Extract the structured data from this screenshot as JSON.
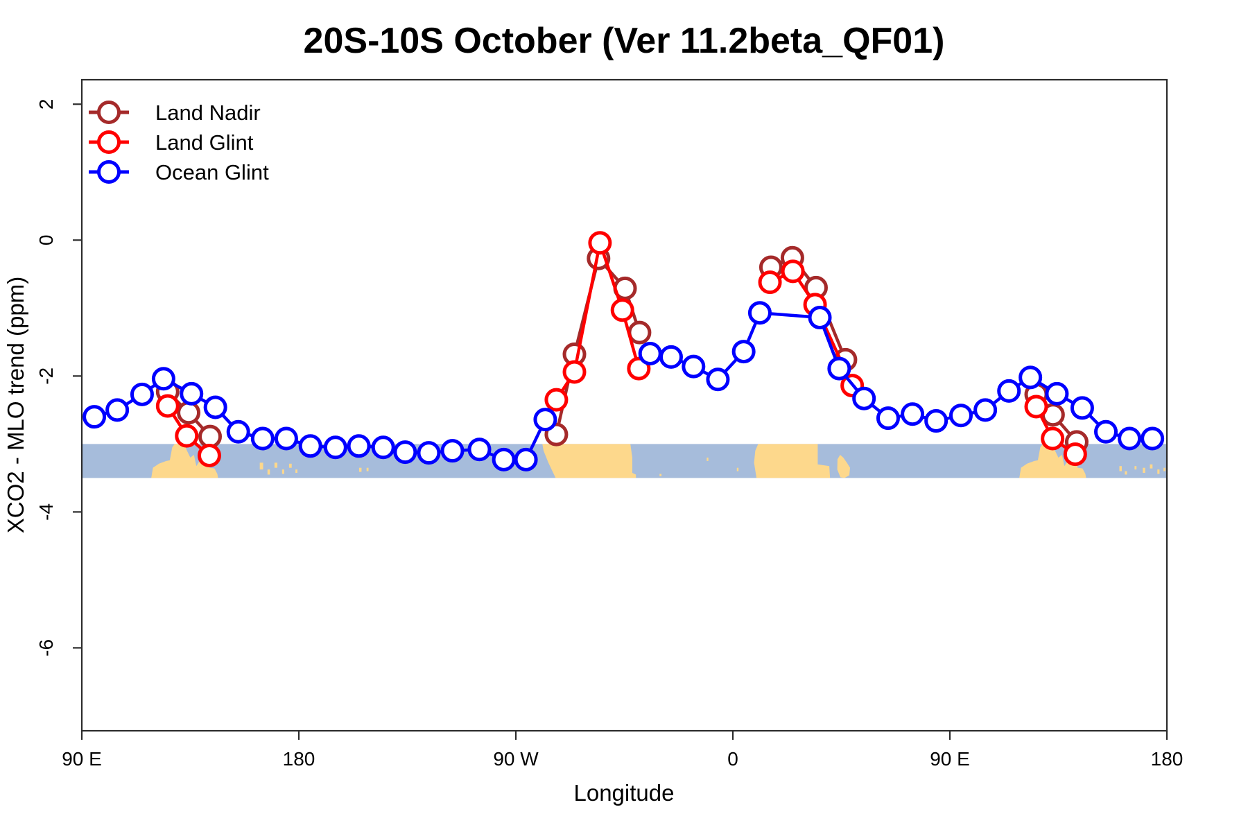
{
  "chart_data": {
    "type": "line",
    "title": "20S-10S October (Ver 11.2beta_QF01)",
    "xlabel": "Longitude",
    "ylabel": "XCO2 - MLO trend (ppm)",
    "xlim": [
      90,
      540
    ],
    "ylim": [
      -7.22,
      2.36
    ],
    "grid": false,
    "legend_position": "top-left",
    "x_ticks": [
      {
        "v": 90,
        "label": "90 E"
      },
      {
        "v": 180,
        "label": "180"
      },
      {
        "v": 270,
        "label": "90 W"
      },
      {
        "v": 360,
        "label": "0"
      },
      {
        "v": 450,
        "label": "90 E"
      },
      {
        "v": 540,
        "label": "180"
      }
    ],
    "y_ticks": [
      {
        "v": 2,
        "label": "2"
      },
      {
        "v": 0,
        "label": "0"
      },
      {
        "v": -2,
        "label": "-2"
      },
      {
        "v": -4,
        "label": "-4"
      },
      {
        "v": -6,
        "label": "-6"
      }
    ],
    "map_band": {
      "y_top": -3.0,
      "y_bottom": -3.5,
      "ocean_color": "#a6bcdb",
      "land_color": "#fdd88c",
      "land_polygons": [
        [
          [
            118.8,
            0
          ],
          [
            119.5,
            0.3
          ],
          [
            122,
            0.42
          ],
          [
            125,
            0.5
          ],
          [
            126.5,
            0.52
          ],
          [
            127.5,
            0.9
          ],
          [
            128.5,
            1
          ],
          [
            132.5,
            1
          ],
          [
            133.5,
            0.82
          ],
          [
            135,
            0.6
          ],
          [
            136.5,
            0.68
          ],
          [
            137.5,
            0.35
          ],
          [
            139,
            0.52
          ],
          [
            140.5,
            0.48
          ],
          [
            142,
            0.55
          ],
          [
            143,
            0.3
          ],
          [
            145,
            0.28
          ],
          [
            146.2,
            0.12
          ],
          [
            146.5,
            0
          ]
        ],
        [
          [
            281,
            1
          ],
          [
            317.5,
            1
          ],
          [
            318.3,
            0.6
          ],
          [
            318.3,
            0.15
          ],
          [
            319.8,
            0.1
          ],
          [
            319.8,
            0
          ],
          [
            286.5,
            0
          ],
          [
            283.5,
            0.45
          ],
          [
            281.5,
            0.8
          ]
        ],
        [
          [
            370.5,
            1
          ],
          [
            395.2,
            1
          ],
          [
            395.2,
            0.4
          ],
          [
            400,
            0.35
          ],
          [
            400.3,
            0
          ],
          [
            369.8,
            0
          ],
          [
            368.8,
            0.45
          ],
          [
            369.3,
            0.8
          ]
        ],
        [
          [
            403.4,
            0.55
          ],
          [
            404.5,
            0.68
          ],
          [
            405.8,
            0.6
          ],
          [
            407.3,
            0.45
          ],
          [
            408.6,
            0.3
          ],
          [
            408.3,
            0.08
          ],
          [
            406.3,
            0
          ],
          [
            404.6,
            0.02
          ],
          [
            403.3,
            0.25
          ]
        ],
        [
          [
            478.8,
            0
          ],
          [
            479.5,
            0.3
          ],
          [
            482,
            0.42
          ],
          [
            485,
            0.5
          ],
          [
            486.5,
            0.52
          ],
          [
            487.5,
            0.9
          ],
          [
            488.5,
            1
          ],
          [
            492.5,
            1
          ],
          [
            493.5,
            0.82
          ],
          [
            495,
            0.6
          ],
          [
            496.5,
            0.68
          ],
          [
            497.5,
            0.35
          ],
          [
            499,
            0.52
          ],
          [
            500.5,
            0.48
          ],
          [
            502,
            0.55
          ],
          [
            503,
            0.3
          ],
          [
            505,
            0.28
          ],
          [
            506.2,
            0.12
          ],
          [
            506.5,
            0
          ]
        ]
      ],
      "land_dots": [
        [
          164.5,
          1.4,
          0.25,
          0.45
        ],
        [
          167.5,
          1.0,
          0.1,
          0.25
        ],
        [
          170.5,
          1.2,
          0.3,
          0.45
        ],
        [
          173.5,
          0.9,
          0.12,
          0.25
        ],
        [
          176.5,
          1.1,
          0.3,
          0.42
        ],
        [
          179,
          0.8,
          0.15,
          0.25
        ],
        [
          205.5,
          1.0,
          0.18,
          0.3
        ],
        [
          208.5,
          0.8,
          0.2,
          0.3
        ],
        [
          330,
          0.8,
          0.05,
          0.12
        ],
        [
          349.5,
          0.7,
          0.5,
          0.6
        ],
        [
          362,
          0.7,
          0.2,
          0.3
        ],
        [
          520.8,
          1.0,
          0.2,
          0.35
        ],
        [
          523,
          0.9,
          0.1,
          0.2
        ],
        [
          527,
          0.8,
          0.25,
          0.35
        ],
        [
          530.5,
          1.0,
          0.15,
          0.3
        ],
        [
          533.5,
          1.1,
          0.28,
          0.4
        ],
        [
          536.5,
          0.9,
          0.12,
          0.25
        ],
        [
          539,
          0.8,
          0.2,
          0.3
        ]
      ]
    },
    "series": [
      {
        "name": "Land Nadir",
        "color": "#A52A2A",
        "segments": [
          [
            [
              125.6,
              -2.23
            ],
            [
              134.3,
              -2.54
            ],
            [
              143.2,
              -2.89
            ]
          ],
          [
            [
              286.8,
              -2.86
            ],
            [
              294.3,
              -1.68
            ],
            [
              304.3,
              -0.27
            ],
            [
              315.3,
              -0.71
            ],
            [
              321.3,
              -1.36
            ]
          ],
          [
            [
              375.8,
              -0.4
            ],
            [
              384.7,
              -0.26
            ],
            [
              394.5,
              -0.7
            ],
            [
              406.7,
              -1.76
            ]
          ],
          [
            [
              485.8,
              -2.27
            ],
            [
              492.8,
              -2.57
            ],
            [
              502.6,
              -2.97
            ]
          ]
        ]
      },
      {
        "name": "Land Glint",
        "color": "#FF0000",
        "segments": [
          [
            [
              125.6,
              -2.44
            ],
            [
              133.5,
              -2.88
            ],
            [
              142.9,
              -3.17
            ]
          ],
          [
            [
              286.8,
              -2.35
            ],
            [
              294.3,
              -1.94
            ],
            [
              304.9,
              -0.04
            ],
            [
              314.2,
              -1.03
            ],
            [
              321.0,
              -1.89
            ]
          ],
          [
            [
              375.4,
              -0.62
            ],
            [
              384.9,
              -0.46
            ],
            [
              394.1,
              -0.95
            ],
            [
              409.5,
              -2.14
            ]
          ],
          [
            [
              485.8,
              -2.45
            ],
            [
              492.6,
              -2.92
            ],
            [
              502.0,
              -3.15
            ]
          ]
        ]
      },
      {
        "name": "Ocean Glint",
        "color": "#0000FF",
        "segments": [
          [
            [
              95.2,
              -2.6
            ],
            [
              104.7,
              -2.5
            ],
            [
              115.0,
              -2.27
            ],
            [
              123.9,
              -2.04
            ],
            [
              135.5,
              -2.26
            ],
            [
              145.4,
              -2.46
            ],
            [
              154.9,
              -2.82
            ],
            [
              165.0,
              -2.92
            ],
            [
              174.8,
              -2.92
            ],
            [
              184.8,
              -3.03
            ],
            [
              195.2,
              -3.05
            ],
            [
              204.9,
              -3.03
            ],
            [
              215.0,
              -3.05
            ],
            [
              224.1,
              -3.12
            ],
            [
              233.9,
              -3.13
            ],
            [
              243.7,
              -3.1
            ],
            [
              254.9,
              -3.08
            ],
            [
              265.0,
              -3.23
            ],
            [
              274.2,
              -3.23
            ],
            [
              282.2,
              -2.64
            ]
          ],
          [
            [
              325.7,
              -1.67
            ],
            [
              334.4,
              -1.72
            ],
            [
              343.7,
              -1.86
            ],
            [
              353.8,
              -2.05
            ],
            [
              364.5,
              -1.64
            ],
            [
              371.2,
              -1.07
            ],
            [
              396.1,
              -1.14
            ],
            [
              404.1,
              -1.89
            ],
            [
              414.4,
              -2.33
            ],
            [
              424.4,
              -2.62
            ],
            [
              434.5,
              -2.56
            ],
            [
              444.3,
              -2.66
            ],
            [
              454.6,
              -2.58
            ],
            [
              464.7,
              -2.5
            ],
            [
              474.5,
              -2.22
            ],
            [
              483.4,
              -2.02
            ],
            [
              494.4,
              -2.26
            ],
            [
              504.9,
              -2.47
            ],
            [
              514.7,
              -2.82
            ],
            [
              524.5,
              -2.92
            ],
            [
              534.0,
              -2.92
            ]
          ]
        ]
      }
    ]
  }
}
